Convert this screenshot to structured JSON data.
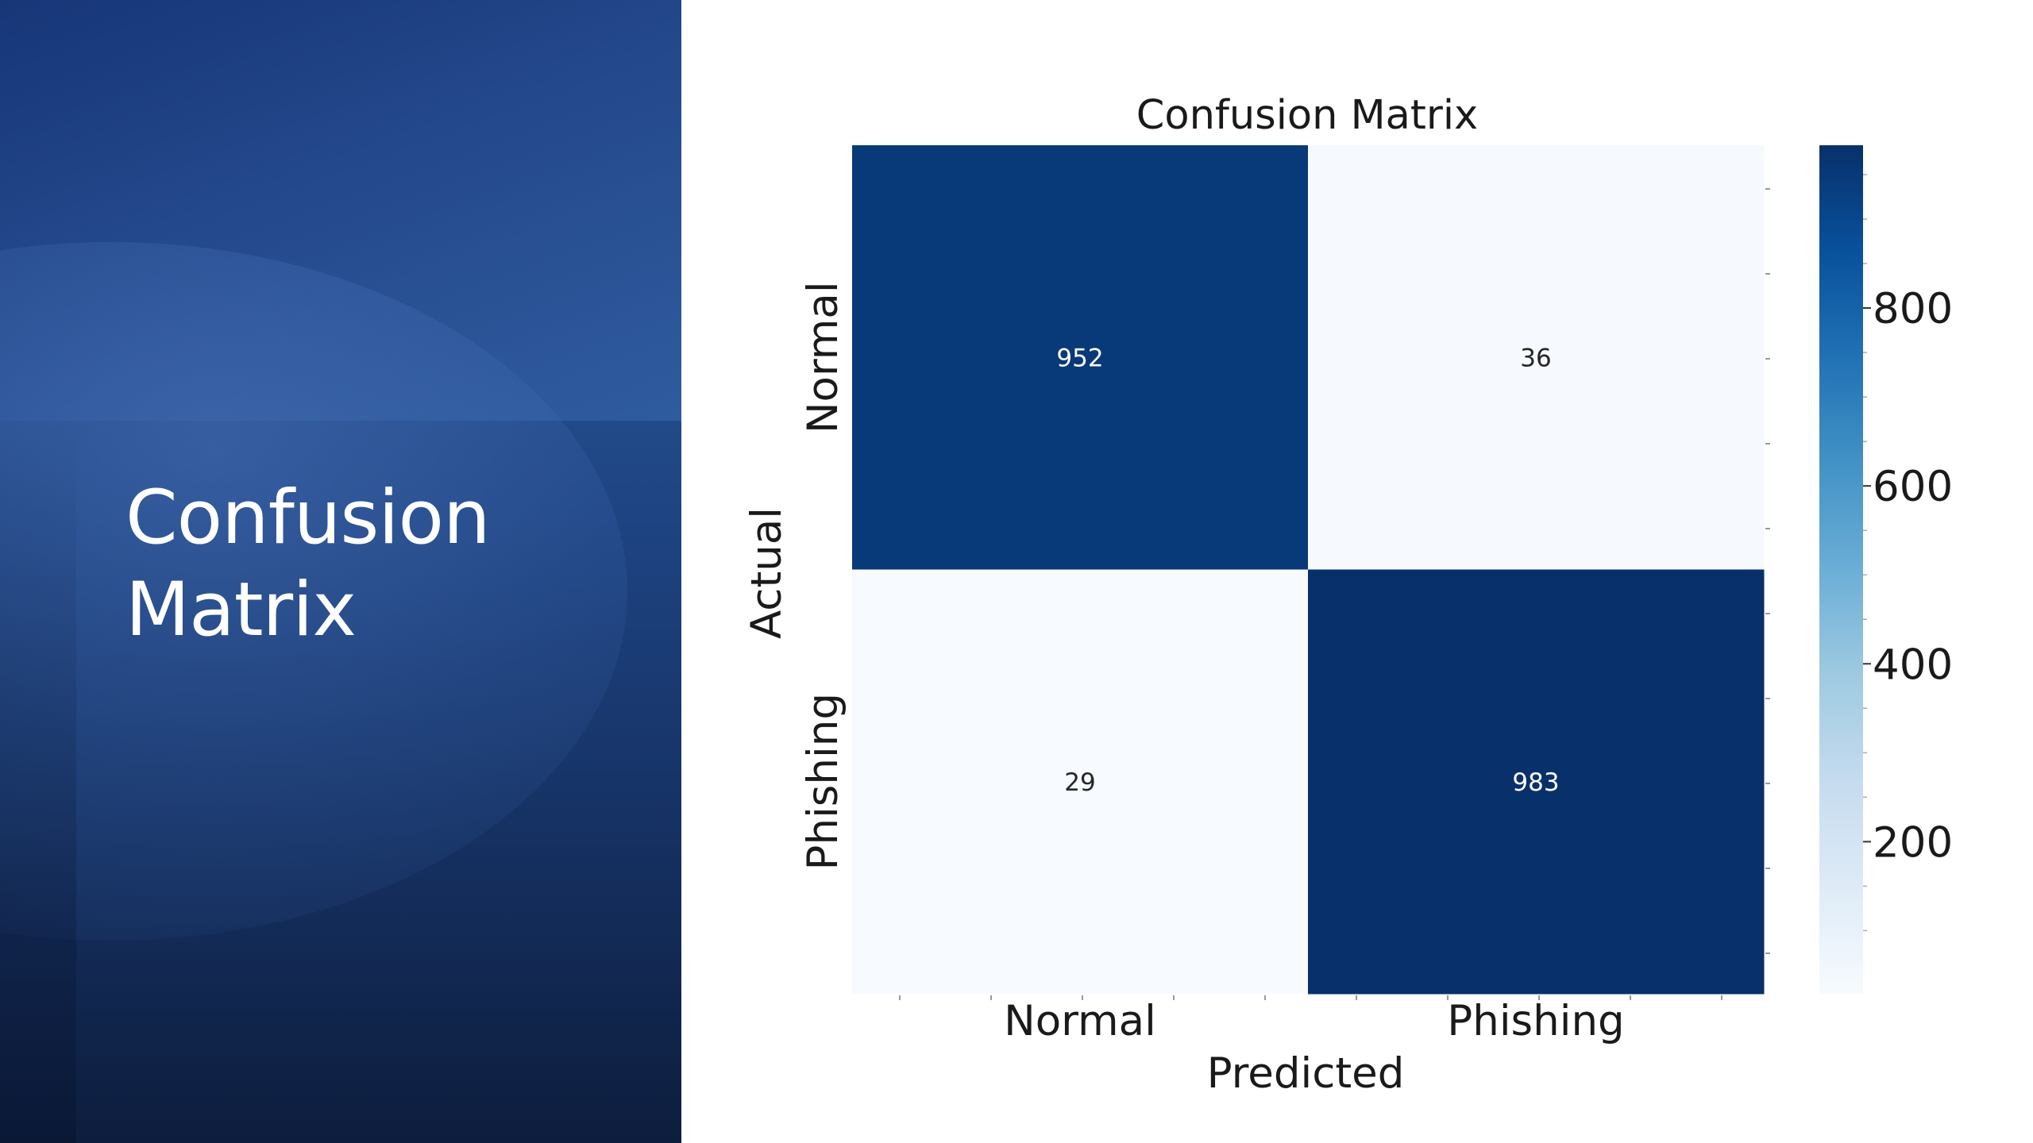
{
  "slide": {
    "title_lines": [
      "Confusion",
      "Matrix"
    ]
  },
  "chart_data": {
    "type": "heatmap",
    "title": "Confusion Matrix",
    "xlabel": "Predicted",
    "ylabel": "Actual",
    "x_categories": [
      "Normal",
      "Phishing"
    ],
    "y_categories": [
      "Normal",
      "Phishing"
    ],
    "values": [
      [
        952,
        36
      ],
      [
        29,
        983
      ]
    ],
    "colormap": "Blues",
    "colorbar": {
      "ticks": [
        200,
        400,
        600,
        800
      ],
      "range": [
        29,
        983
      ]
    }
  },
  "colors": {
    "cmap_low": "#f7fbff",
    "cmap_high": "#08306b",
    "text_dark": "#262626",
    "text_light": "#ffffff"
  }
}
